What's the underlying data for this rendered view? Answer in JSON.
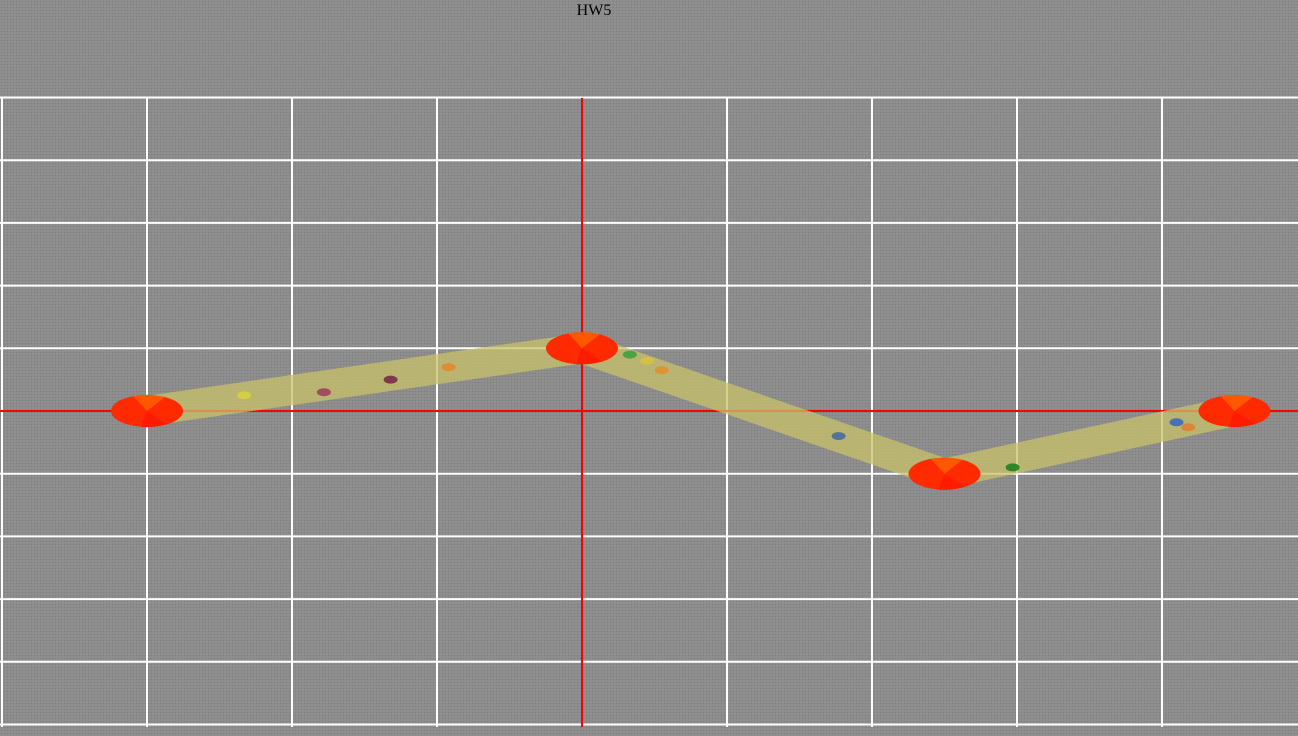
{
  "title": "HW5",
  "colors": {
    "background": "#8c8c8c",
    "grid": "#ffffff",
    "axes": "#ff0000",
    "path_band": "#c8c26a",
    "joint": "#ff2a00",
    "joint_highlight": "#ff7a00"
  },
  "path": {
    "joints": [
      {
        "x": -3,
        "y": 0
      },
      {
        "x": 0,
        "y": 1
      },
      {
        "x": 2.5,
        "y": -1
      },
      {
        "x": 4.5,
        "y": 0
      }
    ]
  },
  "markers": [
    {
      "x": -2.33,
      "y": 0.25,
      "color": "#d8d040"
    },
    {
      "x": -1.78,
      "y": 0.3,
      "color": "#a04060"
    },
    {
      "x": -1.32,
      "y": 0.5,
      "color": "#7a2a4a"
    },
    {
      "x": -0.92,
      "y": 0.7,
      "color": "#e08a30"
    },
    {
      "x": 0.33,
      "y": 0.9,
      "color": "#40a040"
    },
    {
      "x": 0.45,
      "y": 0.8,
      "color": "#d8c040"
    },
    {
      "x": 0.55,
      "y": 0.65,
      "color": "#e09030"
    },
    {
      "x": 1.77,
      "y": -0.4,
      "color": "#4a6aa0"
    },
    {
      "x": 2.97,
      "y": -0.9,
      "color": "#208020"
    },
    {
      "x": 4.1,
      "y": -0.18,
      "color": "#3a6ac0"
    },
    {
      "x": 4.18,
      "y": -0.26,
      "color": "#e08030"
    }
  ]
}
